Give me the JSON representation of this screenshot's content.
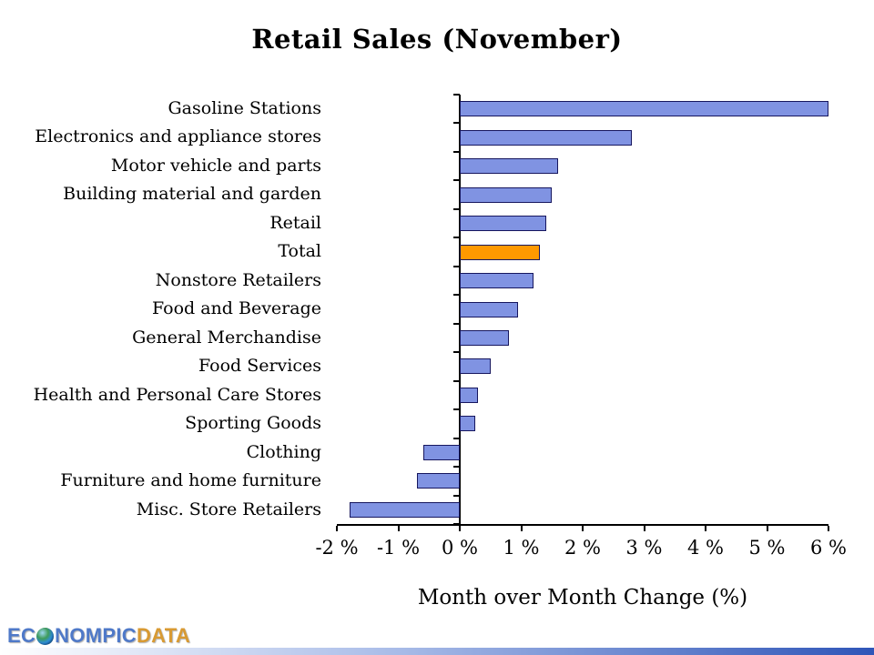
{
  "title": "Retail Sales (November)",
  "chart_data": {
    "type": "bar",
    "orientation": "horizontal",
    "title": "Retail Sales (November)",
    "xlabel": "Month over Month Change (%)",
    "categories": [
      "Gasoline Stations",
      "Electronics and appliance stores",
      "Motor vehicle and parts",
      "Building material and garden",
      "Retail",
      "Total",
      "Nonstore Retailers",
      "Food and Beverage",
      "General Merchandise",
      "Food Services",
      "Health and Personal Care Stores",
      "Sporting Goods",
      "Clothing",
      "Furniture and home furniture",
      "Misc. Store Retailers"
    ],
    "values": [
      6.0,
      2.8,
      1.6,
      1.5,
      1.4,
      1.3,
      1.2,
      0.95,
      0.8,
      0.5,
      0.3,
      0.25,
      -0.6,
      -0.7,
      -1.8
    ],
    "highlight_category": "Total",
    "xlim": [
      -2,
      6
    ],
    "xticks": [
      -2,
      -1,
      0,
      1,
      2,
      3,
      4,
      5,
      6
    ],
    "xtick_labels": [
      "-2 %",
      "-1 %",
      "0 %",
      "1 %",
      "2 %",
      "3 %",
      "4 %",
      "5 %",
      "6 %"
    ],
    "grid": false,
    "legend": "none",
    "bar_color": "#8093e2",
    "bar_border_color": "#16165e",
    "highlight_color": "#ff9900"
  },
  "logo": {
    "prefix": "EC",
    "globe_icon": "globe-icon",
    "mid": "NOMPIC",
    "suffix": "DATA"
  }
}
